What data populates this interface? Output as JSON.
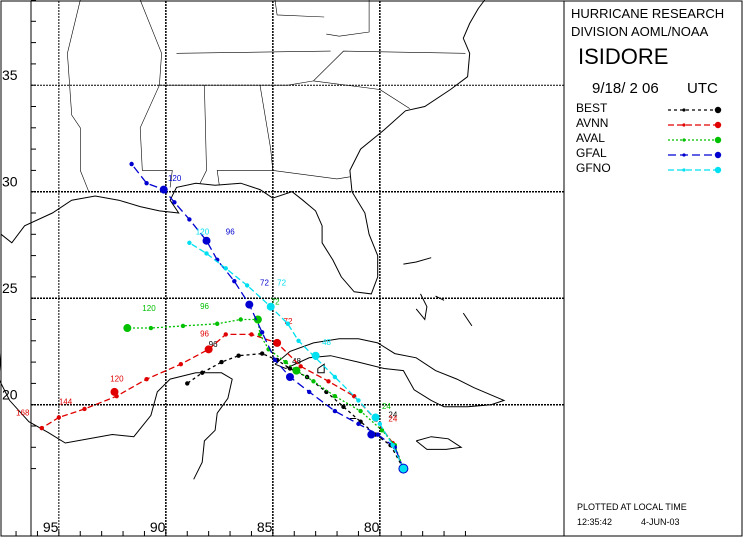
{
  "header": {
    "org_line1": "HURRICANE RESEARCH",
    "org_line2": "DIVISION AOML/NOAA",
    "storm_name": "ISIDORE",
    "datetime": "9/18/ 2 06",
    "utc": "UTC"
  },
  "legend": [
    {
      "label": "BEST",
      "color": "#000000",
      "dash": "3,3"
    },
    {
      "label": "AVNN",
      "color": "#e00000",
      "dash": "6,3"
    },
    {
      "label": "AVAL",
      "color": "#00c000",
      "dash": "2,2"
    },
    {
      "label": "GFAL",
      "color": "#0000d0",
      "dash": "8,4"
    },
    {
      "label": "GFNO",
      "color": "#00e0f0",
      "dash": "6,3"
    }
  ],
  "footer": {
    "plotted": "PLOTTED AT LOCAL TIME",
    "time": "12:35:42",
    "date": "4-JUN-03"
  },
  "axes": {
    "lat_ticks": [
      "35",
      "30",
      "25",
      "20"
    ],
    "lon_ticks": [
      "95",
      "90",
      "85",
      "80"
    ]
  },
  "tracks": {
    "best": {
      "color": "#000000",
      "points": [
        [
          78.9,
          17.0
        ],
        [
          79.5,
          18.1
        ],
        [
          80.2,
          18.6
        ],
        [
          80.9,
          19.2
        ],
        [
          81.7,
          19.9
        ],
        [
          82.5,
          20.6
        ],
        [
          83.4,
          21.3
        ],
        [
          84.2,
          21.7
        ],
        [
          84.8,
          22.1
        ],
        [
          85.5,
          22.4
        ],
        [
          86.6,
          22.3
        ],
        [
          87.4,
          22.0
        ],
        [
          88.3,
          21.5
        ],
        [
          89.0,
          21.0
        ]
      ],
      "labels": [
        {
          "t": "24",
          "at": [
            79.6,
            19.4
          ]
        },
        {
          "t": "48",
          "at": [
            84.1,
            21.9
          ]
        },
        {
          "t": "96",
          "at": [
            88.0,
            22.7
          ]
        }
      ]
    },
    "avnn": {
      "color": "#e00000",
      "points": [
        [
          78.9,
          17.0
        ],
        [
          79.4,
          18.2
        ],
        [
          80.2,
          19.3
        ],
        [
          81.2,
          20.4
        ],
        [
          82.4,
          21.1
        ],
        [
          83.7,
          21.8
        ],
        [
          84.8,
          22.9
        ],
        [
          86.0,
          23.3
        ],
        [
          87.2,
          23.3
        ],
        [
          88.0,
          22.6
        ],
        [
          89.3,
          21.9
        ],
        [
          90.9,
          21.2
        ],
        [
          92.3,
          20.4
        ],
        [
          93.8,
          19.8
        ],
        [
          95.0,
          19.4
        ],
        [
          95.8,
          18.9
        ]
      ],
      "big": [
        [
          84.8,
          22.9
        ],
        [
          88.0,
          22.6
        ],
        [
          92.4,
          20.6
        ]
      ],
      "labels": [
        {
          "t": "24",
          "at": [
            79.6,
            19.2
          ]
        },
        {
          "t": "72",
          "at": [
            84.5,
            23.8
          ]
        },
        {
          "t": "96",
          "at": [
            88.4,
            23.2
          ]
        },
        {
          "t": "120",
          "at": [
            92.6,
            21.1
          ]
        },
        {
          "t": "144",
          "at": [
            95.0,
            20.0
          ]
        },
        {
          "t": "168",
          "at": [
            97.0,
            19.5
          ]
        }
      ]
    },
    "aval": {
      "color": "#00c000",
      "points": [
        [
          78.9,
          17.0
        ],
        [
          79.3,
          18.1
        ],
        [
          79.9,
          18.8
        ],
        [
          80.9,
          19.7
        ],
        [
          82.1,
          20.4
        ],
        [
          83.1,
          21.1
        ],
        [
          83.9,
          21.6
        ],
        [
          84.4,
          22.0
        ],
        [
          85.2,
          22.6
        ],
        [
          85.6,
          23.3
        ],
        [
          85.7,
          24.0
        ],
        [
          86.5,
          24.0
        ],
        [
          87.6,
          23.8
        ],
        [
          89.2,
          23.7
        ],
        [
          90.7,
          23.6
        ],
        [
          91.8,
          23.6
        ]
      ],
      "big": [
        [
          83.9,
          21.6
        ],
        [
          85.7,
          24.0
        ],
        [
          91.8,
          23.6
        ]
      ],
      "labels": [
        {
          "t": "24",
          "at": [
            79.9,
            19.8
          ]
        },
        {
          "t": "120",
          "at": [
            91.1,
            24.4
          ]
        },
        {
          "t": "96",
          "at": [
            88.4,
            24.5
          ]
        },
        {
          "t": "72",
          "at": [
            85.1,
            24.7
          ]
        }
      ]
    },
    "gfal": {
      "color": "#0000d0",
      "points": [
        [
          78.9,
          17.0
        ],
        [
          79.3,
          18.0
        ],
        [
          80.1,
          18.6
        ],
        [
          81.0,
          19.1
        ],
        [
          82.1,
          19.7
        ],
        [
          83.3,
          20.6
        ],
        [
          84.2,
          21.3
        ],
        [
          84.9,
          22.1
        ],
        [
          85.5,
          23.4
        ],
        [
          86.1,
          24.7
        ],
        [
          86.8,
          25.8
        ],
        [
          87.6,
          26.8
        ],
        [
          88.1,
          27.7
        ],
        [
          88.9,
          28.7
        ],
        [
          89.6,
          29.5
        ],
        [
          90.1,
          30.1
        ],
        [
          90.9,
          30.4
        ],
        [
          91.6,
          31.3
        ]
      ],
      "big": [
        [
          80.4,
          18.6
        ],
        [
          84.2,
          21.3
        ],
        [
          86.1,
          24.7
        ],
        [
          88.1,
          27.7
        ],
        [
          90.1,
          30.1
        ]
      ],
      "labels": [
        {
          "t": "72",
          "at": [
            85.6,
            25.6
          ]
        },
        {
          "t": "96",
          "at": [
            87.2,
            28.0
          ]
        },
        {
          "t": "120",
          "at": [
            89.9,
            30.5
          ]
        }
      ]
    },
    "gfno": {
      "color": "#00e0f0",
      "points": [
        [
          78.9,
          17.0
        ],
        [
          79.4,
          18.1
        ],
        [
          80.0,
          19.1
        ],
        [
          81.0,
          20.2
        ],
        [
          82.1,
          21.3
        ],
        [
          83.0,
          22.2
        ],
        [
          83.8,
          23.0
        ],
        [
          84.3,
          23.8
        ],
        [
          85.1,
          24.6
        ],
        [
          86.2,
          25.6
        ],
        [
          87.2,
          26.4
        ],
        [
          88.1,
          27.1
        ],
        [
          88.9,
          27.6
        ]
      ],
      "big": [
        [
          80.2,
          19.4
        ],
        [
          83.0,
          22.3
        ],
        [
          85.1,
          24.6
        ]
      ],
      "labels": [
        {
          "t": "48",
          "at": [
            82.7,
            22.8
          ]
        },
        {
          "t": "72",
          "at": [
            84.8,
            25.6
          ]
        },
        {
          "t": "120",
          "at": [
            88.6,
            28.0
          ]
        }
      ]
    }
  }
}
